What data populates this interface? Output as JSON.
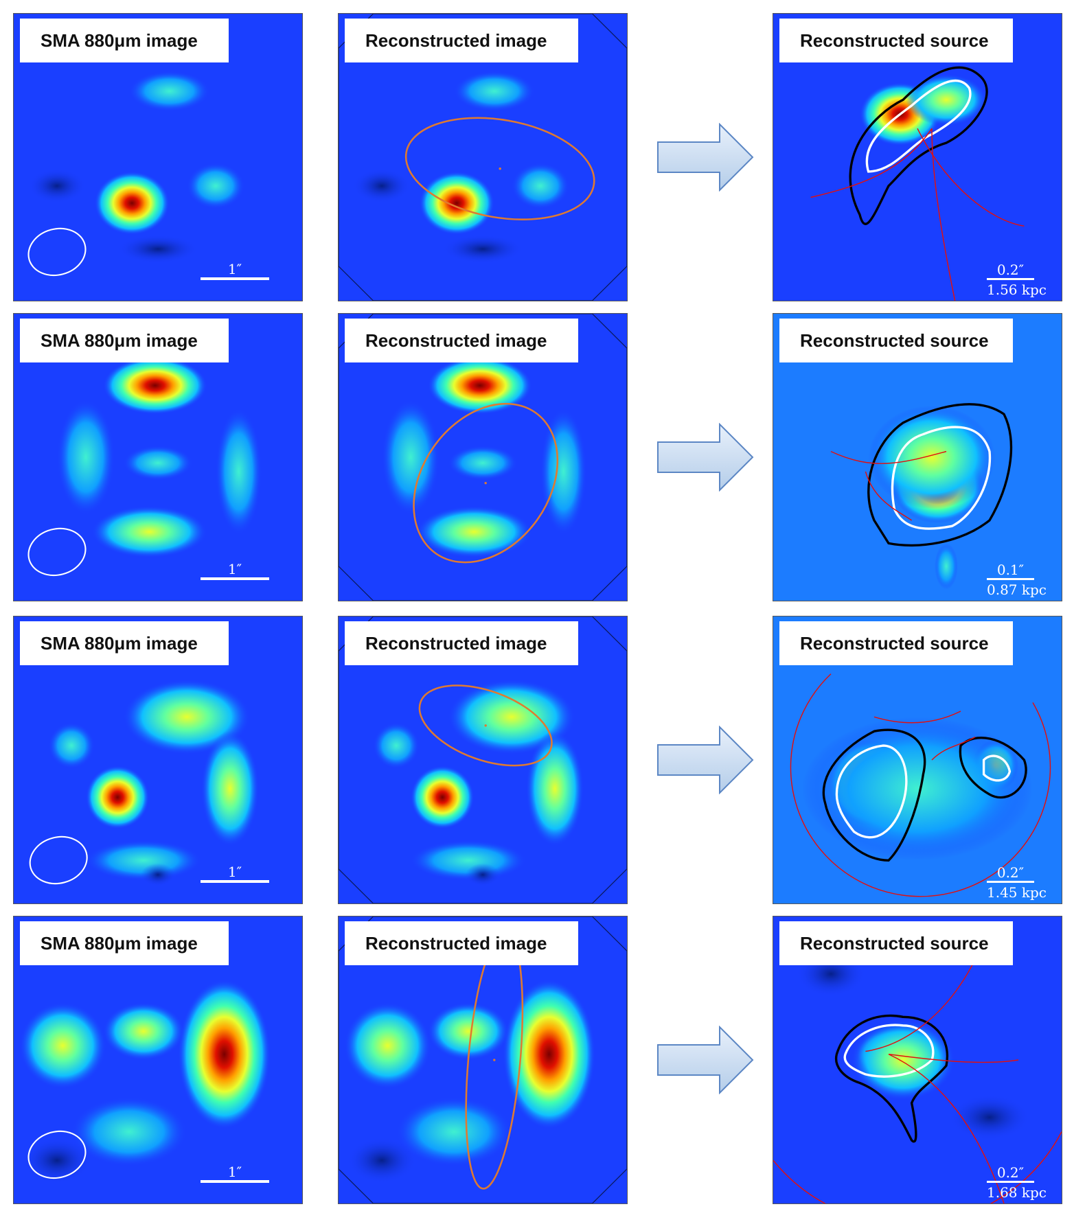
{
  "figure": {
    "columns": {
      "sma_label": "SMA 880μm image",
      "reconstructed_image_label": "Reconstructed image",
      "reconstructed_source_label": "Reconstructed source"
    },
    "rows": [
      {
        "beam_scale": "1″",
        "source_scale_arcsec": "0.2″",
        "source_scale_kpc": "1.56 kpc"
      },
      {
        "beam_scale": "1″",
        "source_scale_arcsec": "0.1″",
        "source_scale_kpc": "0.87 kpc"
      },
      {
        "beam_scale": "1″",
        "source_scale_arcsec": "0.2″",
        "source_scale_kpc": "1.45 kpc"
      },
      {
        "beam_scale": "1″",
        "source_scale_arcsec": "0.2″",
        "source_scale_kpc": "1.68 kpc"
      }
    ],
    "colors": {
      "background": "#1a3fff",
      "model_ellipse": "#e07a30",
      "critical_curve": "#e01010",
      "arrow_fill": "#c9dcf2",
      "arrow_stroke": "#5b86c4"
    }
  }
}
